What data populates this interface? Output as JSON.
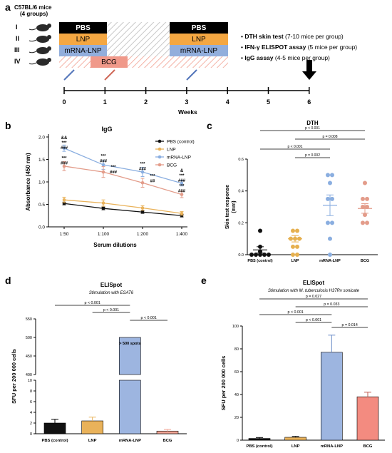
{
  "panel_a": {
    "letter": "a",
    "mouse_line1": "C57BL/6 mice",
    "mouse_line2": "(4 groups)",
    "groups": [
      "I",
      "II",
      "III",
      "IV"
    ],
    "regimens": {
      "pbs": "PBS",
      "lnp": "LNP",
      "mrna_lnp": "mRNA-LNP",
      "bcg": "BCG"
    },
    "timeline_ticks": [
      "0",
      "1",
      "2",
      "3",
      "4",
      "5",
      "6"
    ],
    "timeline_label": "Weeks",
    "assays": [
      {
        "name": "DTH skin test",
        "detail": " (7-10 mice per group)"
      },
      {
        "name": "IFN-γ ELISPOT assay",
        "detail": " (5 mice per group)"
      },
      {
        "name": "IgG assay",
        "detail": " (4-5 mice per group)"
      }
    ],
    "colors": {
      "pbs": "#000000",
      "lnp": "#f4a742",
      "mrna_lnp": "#92aedc",
      "bcg": "#f0998a"
    }
  },
  "panel_b": {
    "letter": "b",
    "chart_data": {
      "type": "line",
      "title": "IgG",
      "xlabel": "Serum dilutions",
      "ylabel": "Absorbance (450 nm)",
      "categories": [
        "1:50",
        "1:100",
        "1:200",
        "1:400"
      ],
      "ylim": [
        0,
        2.0
      ],
      "yticks": [
        "0.0",
        "0.5",
        "1.0",
        "1.5",
        "2.0"
      ],
      "legend_position": "top-right",
      "series": [
        {
          "name": "PBS (control)",
          "color": "#111111",
          "values": [
            0.52,
            0.41,
            0.33,
            0.25
          ],
          "err": [
            0.03,
            0.03,
            0.03,
            0.03
          ]
        },
        {
          "name": "LNP",
          "color": "#e9b25a",
          "values": [
            0.6,
            0.53,
            0.42,
            0.3
          ],
          "err": [
            0.06,
            0.07,
            0.05,
            0.04
          ]
        },
        {
          "name": "mRNA-LNP",
          "color": "#8aaee0",
          "values": [
            1.75,
            1.38,
            1.22,
            0.97
          ],
          "err": [
            0.07,
            0.1,
            0.1,
            0.06
          ]
        },
        {
          "name": "BCG",
          "color": "#e39c8a",
          "values": [
            1.35,
            1.22,
            0.98,
            0.72
          ],
          "err": [
            0.1,
            0.12,
            0.1,
            0.07
          ]
        }
      ],
      "annotations": [
        {
          "x": "1:50",
          "lines": [
            "&&",
            "***",
            "###"
          ],
          "y_level": 1.95
        },
        {
          "x": "1:50",
          "lines": [
            "***",
            "###"
          ],
          "y_level": 1.5
        },
        {
          "x": "1:100",
          "lines": [
            "***",
            "###"
          ],
          "y_level": 1.55
        },
        {
          "x": "1:100",
          "lines": [
            "***",
            "###"
          ],
          "y_level": 1.3
        },
        {
          "x": "1:200",
          "lines": [
            "***",
            "###"
          ],
          "y_level": 1.37
        },
        {
          "x": "1:200",
          "lines": [
            "***",
            "##"
          ],
          "y_level": 1.1
        },
        {
          "x": "1:400",
          "lines": [
            "&",
            "***",
            "###"
          ],
          "y_level": 1.22
        },
        {
          "x": "1:400",
          "lines": [
            "***",
            "###"
          ],
          "y_level": 0.88
        }
      ]
    }
  },
  "panel_c": {
    "letter": "c",
    "chart_data": {
      "type": "scatter",
      "title": "DTH",
      "xlabel": "",
      "ylabel": "Skin test response\n(mm)",
      "categories": [
        "PBS (control)",
        "LNP",
        "mRNA-LNP",
        "BCG"
      ],
      "ylim": [
        0,
        0.6
      ],
      "yticks": [
        "0.0",
        "0.2",
        "0.4",
        "0.6"
      ],
      "series": [
        {
          "name": "PBS (control)",
          "color": "#111111",
          "points": [
            0.15,
            0.05,
            0.02,
            0.0,
            0.0,
            0.0,
            0.0,
            0.0
          ],
          "mean": 0.03,
          "sem": 0.02
        },
        {
          "name": "LNP",
          "color": "#e6b04f",
          "points": [
            0.15,
            0.15,
            0.1,
            0.1,
            0.1,
            0.05,
            0.05,
            0.0,
            0.0
          ],
          "mean": 0.1,
          "sem": 0.02
        },
        {
          "name": "mRNA-LNP",
          "color": "#8aaee0",
          "points": [
            0.5,
            0.5,
            0.45,
            0.35,
            0.35,
            0.2,
            0.2,
            0.1,
            0.0
          ],
          "mean": 0.31,
          "sem": 0.065
        },
        {
          "name": "BCG",
          "color": "#e39c8a",
          "points": [
            0.45,
            0.35,
            0.35,
            0.3,
            0.3,
            0.25,
            0.2,
            0.2
          ],
          "mean": 0.29,
          "sem": 0.03
        }
      ],
      "brackets": [
        {
          "from": "PBS (control)",
          "to": "BCG",
          "label": "p < 0.001"
        },
        {
          "from": "LNP",
          "to": "BCG",
          "label": "p = 0.008"
        },
        {
          "from": "PBS (control)",
          "to": "mRNA-LNP",
          "label": "p < 0.001"
        },
        {
          "from": "LNP",
          "to": "mRNA-LNP",
          "label": "p = 0.002"
        }
      ]
    }
  },
  "panel_d": {
    "letter": "d",
    "chart_data": {
      "type": "bar",
      "title": "ELISpot",
      "subtitle": "Stimulation with ESAT6",
      "xlabel": "",
      "ylabel": "SFU per 200 000 cells",
      "categories": [
        "PBS (control)",
        "LNP",
        "mRNA-LNP",
        "BCG"
      ],
      "values": [
        2.0,
        2.4,
        500,
        0.5
      ],
      "err": [
        0.7,
        0.7,
        0,
        0.3
      ],
      "colors": [
        "#111111",
        "#e9b25a",
        "#9db5e0",
        "#f0a393"
      ],
      "broken_axis": true,
      "ylim_lower": [
        0,
        10
      ],
      "ylim_upper": [
        400,
        550
      ],
      "yticks_lower": [
        "0",
        "2",
        "4",
        "6",
        "8",
        "10"
      ],
      "yticks_upper": [
        "400",
        "450",
        "500",
        "550"
      ],
      "bar_label": "> 500 spots",
      "brackets": [
        {
          "from": "PBS (control)",
          "to": "mRNA-LNP",
          "label": "p < 0.001"
        },
        {
          "from": "LNP",
          "to": "mRNA-LNP",
          "label": "p < 0.001"
        },
        {
          "from": "mRNA-LNP",
          "to": "BCG",
          "label": "p < 0.001"
        }
      ]
    }
  },
  "panel_e": {
    "letter": "e",
    "chart_data": {
      "type": "bar",
      "title": "ELISpot",
      "subtitle_prefix": "Stimulation with ",
      "subtitle_italic": "M. tuberculosis",
      "subtitle_suffix": " H37Rv sonicate",
      "xlabel": "",
      "ylabel": "SFU per 200 000 cells",
      "categories": [
        "PBS (control)",
        "LNP",
        "mRNA-LNP",
        "BCG"
      ],
      "values": [
        1.5,
        2.5,
        77,
        38
      ],
      "err": [
        0.8,
        0.8,
        15,
        4
      ],
      "colors": [
        "#111111",
        "#e9b25a",
        "#9db5e0",
        "#f38b80"
      ],
      "ylim": [
        0,
        100
      ],
      "yticks": [
        "0",
        "20",
        "40",
        "60",
        "80",
        "100"
      ],
      "brackets": [
        {
          "from": "PBS (control)",
          "to": "BCG",
          "label": "p = 0.027"
        },
        {
          "from": "LNP",
          "to": "BCG",
          "label": "p = 0.033"
        },
        {
          "from": "PBS (control)",
          "to": "mRNA-LNP",
          "label": "p < 0.001"
        },
        {
          "from": "LNP",
          "to": "mRNA-LNP",
          "label": "p < 0.001"
        },
        {
          "from": "mRNA-LNP",
          "to": "BCG",
          "label": "p = 0.014"
        }
      ]
    }
  }
}
